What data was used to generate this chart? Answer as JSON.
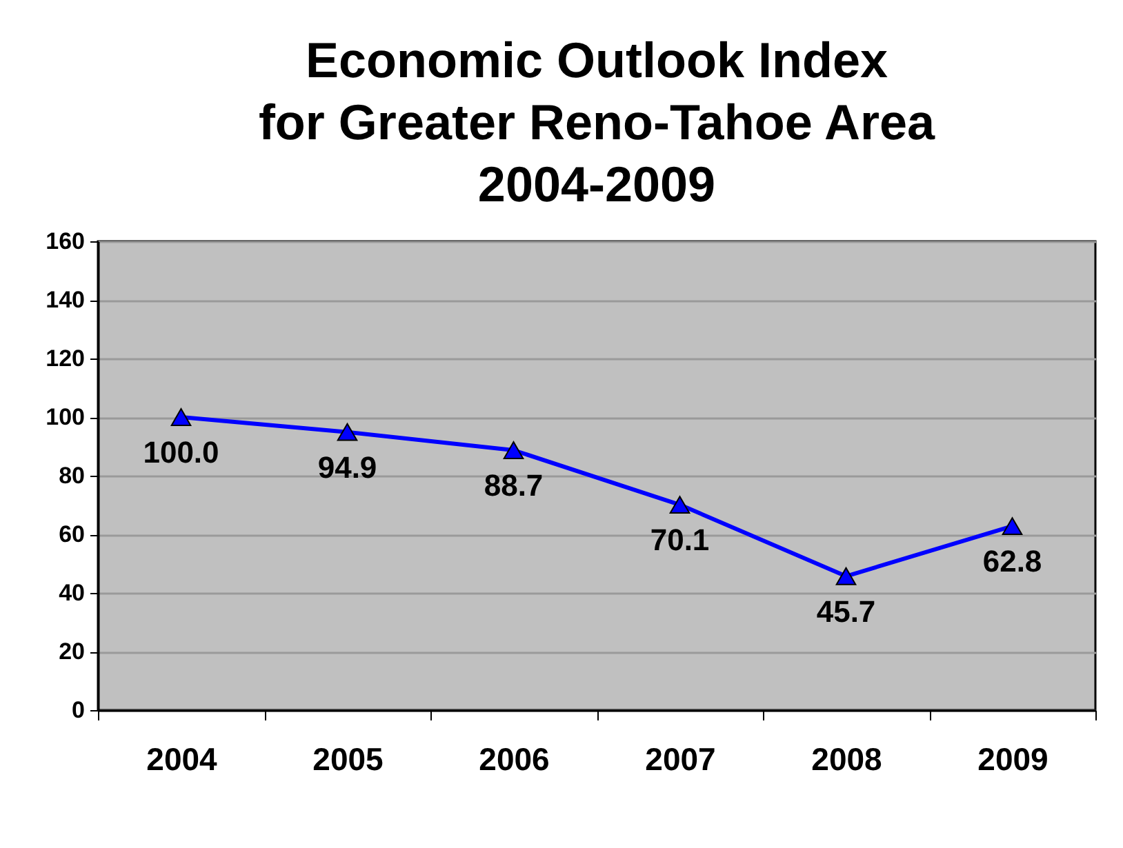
{
  "chart_data": {
    "type": "line",
    "title": "Economic Outlook Index\nfor Greater Reno-Tahoe Area\n2004-2009",
    "categories": [
      "2004",
      "2005",
      "2006",
      "2007",
      "2008",
      "2009"
    ],
    "series": [
      {
        "color": "#0000ff",
        "values": [
          100.0,
          94.9,
          88.7,
          70.1,
          45.7,
          62.8
        ],
        "value_labels": [
          "100.0",
          "94.9",
          "88.7",
          "70.1",
          "45.7",
          "62.8"
        ]
      }
    ],
    "ylim": [
      0,
      160
    ],
    "yticks": [
      0,
      20,
      40,
      60,
      80,
      100,
      120,
      140,
      160
    ],
    "grid": "y",
    "legend": false,
    "marker": "triangle",
    "line_style": "solid"
  }
}
